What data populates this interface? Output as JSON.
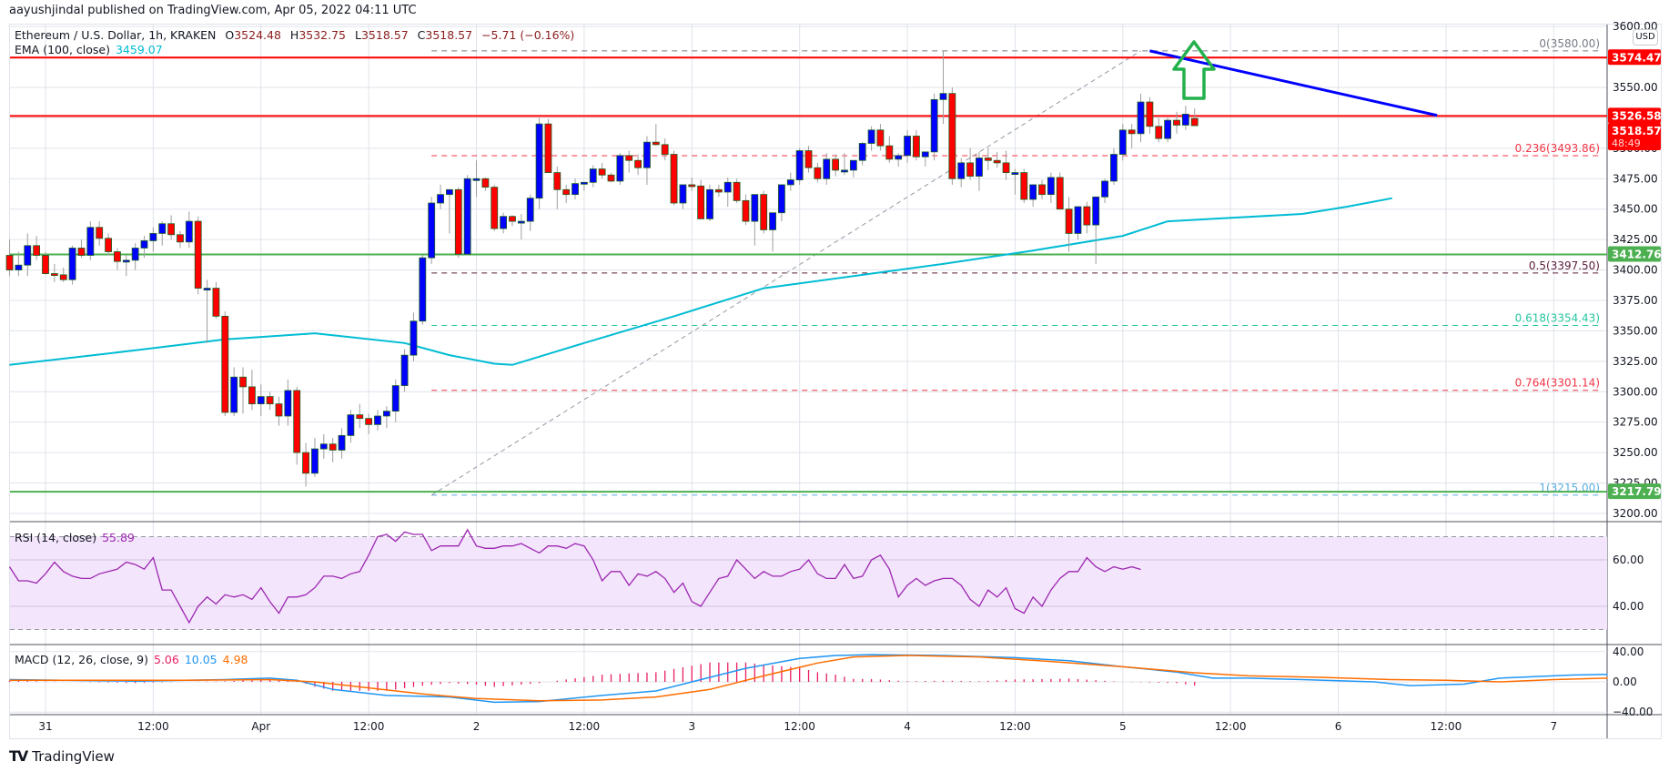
{
  "header": {
    "published": "aayushjindal published on TradingView.com, Apr 05, 2022 04:11 UTC"
  },
  "legend": {
    "symbol": "Ethereum / U.S. Dollar, 1h, KRAKEN",
    "o_label": "O",
    "o": "3524.48",
    "h_label": "H",
    "h": "3532.75",
    "l_label": "L",
    "l": "3518.57",
    "c_label": "C",
    "c": "3518.57",
    "change": "−5.71 (−0.16%)",
    "ema_label": "EMA (100, close)",
    "ema_value": "3459.07",
    "rsi_label": "RSI (14, close)",
    "rsi_value": "55.89",
    "macd_label": "MACD (12, 26, close, 9)",
    "macd_hist": "5.06",
    "macd_line": "10.05",
    "macd_signal": "4.98"
  },
  "currency": "USD",
  "footer": {
    "brand": "TradingView",
    "brand_mark": "TV"
  },
  "colors": {
    "up": "#0000ff",
    "down": "#ff0000",
    "ema": "#00bcd4",
    "rsi": "#9c27b0",
    "rsi_band": "#f3e5fc",
    "macd_line": "#2196f3",
    "macd_signal": "#ff6d00",
    "macd_hist": "#e91e63",
    "resistance": "#ff0000",
    "support": "#4caf50",
    "trendline": "#0000ff",
    "arrow": "#22b14c",
    "grid": "#e0e3eb"
  },
  "chart_data": {
    "type": "candlestick",
    "title": "Ethereum / U.S. Dollar, 1h, KRAKEN",
    "xlabel": "",
    "ylabel": "USD",
    "ylim": [
      3190,
      3610
    ],
    "x_ticks": [
      "31",
      "12:00",
      "Apr",
      "12:00",
      "2",
      "12:00",
      "3",
      "12:00",
      "4",
      "12:00",
      "5",
      "12:00",
      "6",
      "12:00",
      "7"
    ],
    "y_ticks": [
      "3600.00",
      "3575.00",
      "3550.00",
      "3525.00",
      "3500.00",
      "3475.00",
      "3450.00",
      "3425.00",
      "3400.00",
      "3375.00",
      "3350.00",
      "3325.00",
      "3300.00",
      "3275.00",
      "3250.00",
      "3225.00",
      "3200.00"
    ],
    "price_labels": [
      {
        "value": "3574.47",
        "color": "#ff0000"
      },
      {
        "value": "3526.58",
        "color": "#ff0000"
      },
      {
        "value": "3518.57",
        "sub": "48:49",
        "color": "#ff0000"
      },
      {
        "value": "3412.76",
        "color": "#4caf50"
      },
      {
        "value": "3217.79",
        "color": "#4caf50"
      }
    ],
    "horizontal_lines": [
      {
        "name": "resistance-1",
        "price": 3574.47,
        "color": "#ff0000"
      },
      {
        "name": "resistance-2",
        "price": 3526.58,
        "color": "#ff0000"
      },
      {
        "name": "support-1",
        "price": 3412.76,
        "color": "#4caf50"
      },
      {
        "name": "support-2",
        "price": 3217.79,
        "color": "#4caf50"
      }
    ],
    "fibonacci": [
      {
        "level": "0",
        "price": 3580.0,
        "label": "0(3580.00)",
        "color": "#787b86"
      },
      {
        "level": "0.236",
        "price": 3493.86,
        "label": "0.236(3493.86)",
        "color": "#f23645"
      },
      {
        "level": "0.5",
        "price": 3397.5,
        "label": "0.5(3397.50)",
        "color": "#5b1c3a"
      },
      {
        "level": "0.618",
        "price": 3354.43,
        "label": "0.618(3354.43)",
        "color": "#26c6a0"
      },
      {
        "level": "0.764",
        "price": 3301.14,
        "label": "0.764(3301.14)",
        "color": "#f23645"
      },
      {
        "level": "1",
        "price": 3215.0,
        "label": "1(3215.00)",
        "color": "#5aaee0"
      }
    ],
    "trendline": {
      "from": {
        "hour": 123,
        "price": 3580
      },
      "to": {
        "hour": 155,
        "price": 3527
      }
    },
    "fib_trend": {
      "from": {
        "hour": 43,
        "price": 3215
      },
      "to": {
        "hour": 122,
        "price": 3580
      }
    },
    "start_hour_offset": -4,
    "candles": [
      [
        3412,
        3425,
        3395,
        3400
      ],
      [
        3400,
        3415,
        3395,
        3404
      ],
      [
        3404,
        3430,
        3395,
        3420
      ],
      [
        3420,
        3428,
        3408,
        3412
      ],
      [
        3412,
        3415,
        3396,
        3397
      ],
      [
        3397,
        3405,
        3390,
        3396
      ],
      [
        3396,
        3402,
        3390,
        3392
      ],
      [
        3392,
        3420,
        3388,
        3418
      ],
      [
        3418,
        3425,
        3410,
        3412
      ],
      [
        3412,
        3440,
        3408,
        3435
      ],
      [
        3435,
        3440,
        3420,
        3426
      ],
      [
        3426,
        3430,
        3412,
        3415
      ],
      [
        3415,
        3418,
        3400,
        3407
      ],
      [
        3407,
        3412,
        3395,
        3408
      ],
      [
        3408,
        3422,
        3400,
        3418
      ],
      [
        3418,
        3428,
        3410,
        3424
      ],
      [
        3424,
        3435,
        3415,
        3430
      ],
      [
        3430,
        3440,
        3420,
        3438
      ],
      [
        3438,
        3445,
        3425,
        3429
      ],
      [
        3429,
        3432,
        3418,
        3423
      ],
      [
        3423,
        3448,
        3418,
        3440
      ],
      [
        3440,
        3444,
        3380,
        3385
      ],
      [
        3385,
        3392,
        3340,
        3385
      ],
      [
        3385,
        3390,
        3360,
        3362
      ],
      [
        3362,
        3366,
        3280,
        3283
      ],
      [
        3283,
        3320,
        3280,
        3312
      ],
      [
        3312,
        3320,
        3282,
        3304
      ],
      [
        3304,
        3318,
        3285,
        3290
      ],
      [
        3290,
        3306,
        3280,
        3296
      ],
      [
        3296,
        3300,
        3285,
        3290
      ],
      [
        3290,
        3296,
        3272,
        3280
      ],
      [
        3280,
        3310,
        3272,
        3301
      ],
      [
        3301,
        3304,
        3240,
        3250
      ],
      [
        3250,
        3258,
        3222,
        3233
      ],
      [
        3233,
        3262,
        3230,
        3253
      ],
      [
        3253,
        3265,
        3245,
        3257
      ],
      [
        3257,
        3262,
        3242,
        3252
      ],
      [
        3252,
        3270,
        3245,
        3264
      ],
      [
        3264,
        3285,
        3258,
        3281
      ],
      [
        3281,
        3290,
        3270,
        3278
      ],
      [
        3278,
        3282,
        3265,
        3273
      ],
      [
        3273,
        3285,
        3268,
        3280
      ],
      [
        3280,
        3288,
        3270,
        3284
      ],
      [
        3284,
        3310,
        3275,
        3305
      ],
      [
        3305,
        3335,
        3300,
        3330
      ],
      [
        3330,
        3365,
        3325,
        3358
      ],
      [
        3358,
        3412,
        3355,
        3410
      ],
      [
        3410,
        3460,
        3405,
        3455
      ],
      [
        3455,
        3470,
        3450,
        3462
      ],
      [
        3462,
        3466,
        3430,
        3466
      ],
      [
        3466,
        3468,
        3410,
        3413
      ],
      [
        3413,
        3478,
        3412,
        3475
      ],
      [
        3475,
        3490,
        3460,
        3475
      ],
      [
        3475,
        3476,
        3465,
        3468
      ],
      [
        3468,
        3470,
        3432,
        3434
      ],
      [
        3434,
        3447,
        3430,
        3444
      ],
      [
        3444,
        3445,
        3436,
        3440
      ],
      [
        3440,
        3446,
        3425,
        3440
      ],
      [
        3440,
        3462,
        3432,
        3459
      ],
      [
        3459,
        3525,
        3450,
        3520
      ],
      [
        3520,
        3524,
        3480,
        3480
      ],
      [
        3480,
        3485,
        3450,
        3466
      ],
      [
        3466,
        3470,
        3455,
        3462
      ],
      [
        3462,
        3475,
        3458,
        3471
      ],
      [
        3471,
        3472,
        3465,
        3472
      ],
      [
        3472,
        3486,
        3468,
        3483
      ],
      [
        3483,
        3488,
        3475,
        3478
      ],
      [
        3478,
        3480,
        3472,
        3473
      ],
      [
        3473,
        3496,
        3470,
        3494
      ],
      [
        3494,
        3498,
        3480,
        3490
      ],
      [
        3490,
        3495,
        3478,
        3484
      ],
      [
        3484,
        3510,
        3470,
        3505
      ],
      [
        3505,
        3520,
        3502,
        3503
      ],
      [
        3503,
        3508,
        3490,
        3495
      ],
      [
        3495,
        3498,
        3453,
        3455
      ],
      [
        3455,
        3470,
        3450,
        3470
      ],
      [
        3470,
        3476,
        3465,
        3469
      ],
      [
        3469,
        3474,
        3442,
        3442
      ],
      [
        3442,
        3470,
        3440,
        3466
      ],
      [
        3466,
        3470,
        3460,
        3464
      ],
      [
        3464,
        3476,
        3452,
        3472
      ],
      [
        3472,
        3475,
        3455,
        3457
      ],
      [
        3457,
        3462,
        3437,
        3440
      ],
      [
        3440,
        3445,
        3420,
        3462
      ],
      [
        3462,
        3465,
        3430,
        3433
      ],
      [
        3433,
        3440,
        3415,
        3447
      ],
      [
        3447,
        3470,
        3440,
        3470
      ],
      [
        3470,
        3480,
        3465,
        3474
      ],
      [
        3474,
        3500,
        3470,
        3498
      ],
      [
        3498,
        3502,
        3480,
        3484
      ],
      [
        3484,
        3488,
        3472,
        3475
      ],
      [
        3475,
        3496,
        3470,
        3491
      ],
      [
        3491,
        3495,
        3477,
        3482
      ],
      [
        3482,
        3496,
        3478,
        3482
      ],
      [
        3482,
        3490,
        3476,
        3490
      ],
      [
        3490,
        3505,
        3486,
        3504
      ],
      [
        3504,
        3518,
        3498,
        3515
      ],
      [
        3515,
        3520,
        3498,
        3502
      ],
      [
        3502,
        3510,
        3488,
        3491
      ],
      [
        3491,
        3496,
        3485,
        3494
      ],
      [
        3494,
        3515,
        3488,
        3510
      ],
      [
        3510,
        3515,
        3490,
        3493
      ],
      [
        3493,
        3497,
        3485,
        3497
      ],
      [
        3497,
        3545,
        3490,
        3540
      ],
      [
        3540,
        3580,
        3520,
        3545
      ],
      [
        3545,
        3550,
        3470,
        3475
      ],
      [
        3475,
        3492,
        3468,
        3488
      ],
      [
        3488,
        3500,
        3474,
        3477
      ],
      [
        3477,
        3497,
        3465,
        3492
      ],
      [
        3492,
        3500,
        3482,
        3490
      ],
      [
        3490,
        3497,
        3484,
        3488
      ],
      [
        3488,
        3498,
        3474,
        3480
      ],
      [
        3480,
        3483,
        3462,
        3480
      ],
      [
        3480,
        3483,
        3455,
        3458
      ],
      [
        3458,
        3470,
        3452,
        3470
      ],
      [
        3470,
        3474,
        3458,
        3462
      ],
      [
        3462,
        3480,
        3455,
        3476
      ],
      [
        3476,
        3480,
        3450,
        3450
      ],
      [
        3450,
        3460,
        3415,
        3430
      ],
      [
        3430,
        3450,
        3425,
        3452
      ],
      [
        3452,
        3456,
        3430,
        3437
      ],
      [
        3437,
        3460,
        3405,
        3460
      ],
      [
        3460,
        3475,
        3455,
        3473
      ],
      [
        3473,
        3500,
        3470,
        3495
      ],
      [
        3495,
        3520,
        3490,
        3515
      ],
      [
        3515,
        3520,
        3500,
        3512
      ],
      [
        3512,
        3545,
        3505,
        3538
      ],
      [
        3538,
        3542,
        3512,
        3518
      ],
      [
        3518,
        3525,
        3505,
        3508
      ],
      [
        3508,
        3525,
        3505,
        3523
      ],
      [
        3523,
        3530,
        3512,
        3519
      ],
      [
        3519,
        3535,
        3515,
        3528
      ],
      [
        3524.48,
        3532.75,
        3518.57,
        3518.57
      ]
    ],
    "ema100": [
      [
        -4,
        3322
      ],
      [
        10,
        3334
      ],
      [
        20,
        3343
      ],
      [
        30,
        3348
      ],
      [
        40,
        3340
      ],
      [
        45,
        3330
      ],
      [
        50,
        3323
      ],
      [
        52,
        3322
      ],
      [
        60,
        3340
      ],
      [
        70,
        3362
      ],
      [
        80,
        3385
      ],
      [
        90,
        3395
      ],
      [
        100,
        3405
      ],
      [
        110,
        3416
      ],
      [
        120,
        3428
      ],
      [
        125,
        3440
      ],
      [
        130,
        3442
      ],
      [
        140,
        3446
      ],
      [
        145,
        3452
      ],
      [
        150,
        3459
      ]
    ],
    "rsi": {
      "ylim": [
        20,
        80
      ],
      "band": [
        30,
        70
      ],
      "ticks": [
        "60.00",
        "40.00"
      ],
      "values": [
        57,
        51,
        51,
        50,
        54,
        59,
        55,
        53,
        52,
        52,
        54,
        55,
        56,
        59,
        58,
        56,
        61,
        47,
        47,
        40,
        33,
        40,
        44,
        41,
        45,
        44,
        45,
        43,
        48,
        42,
        37,
        44,
        44,
        45,
        48,
        53,
        53,
        52,
        54,
        55,
        62,
        70,
        71,
        68,
        72,
        71,
        71,
        64,
        66,
        66,
        66,
        73,
        66,
        65,
        65,
        66,
        66,
        67,
        65,
        63,
        66,
        66,
        65,
        67,
        66,
        60,
        51,
        55,
        55,
        49,
        54,
        53,
        55,
        52,
        46,
        50,
        42,
        40,
        46,
        52,
        53,
        60,
        56,
        52,
        55,
        53,
        53,
        55,
        56,
        60,
        54,
        52,
        52,
        58,
        52,
        53,
        60,
        62,
        56,
        44,
        49,
        52,
        49,
        51,
        52,
        52,
        49,
        43,
        40,
        47,
        44,
        48,
        39,
        37,
        44,
        40,
        47,
        52,
        55,
        55,
        61,
        57,
        55,
        57,
        56,
        57,
        55.89
      ]
    },
    "macd": {
      "ylim": [
        -50,
        50
      ],
      "ticks": [
        "40.00",
        "0.00",
        "−40.00"
      ],
      "line": [
        [
          -4,
          3
        ],
        [
          10,
          1
        ],
        [
          20,
          3
        ],
        [
          25,
          5
        ],
        [
          28,
          2
        ],
        [
          32,
          -10
        ],
        [
          38,
          -18
        ],
        [
          45,
          -20
        ],
        [
          50,
          -27
        ],
        [
          55,
          -26
        ],
        [
          62,
          -18
        ],
        [
          68,
          -12
        ],
        [
          72,
          0
        ],
        [
          78,
          18
        ],
        [
          84,
          31
        ],
        [
          88,
          35
        ],
        [
          92,
          36
        ],
        [
          100,
          35
        ],
        [
          108,
          32
        ],
        [
          114,
          28
        ],
        [
          120,
          20
        ],
        [
          126,
          13
        ],
        [
          130,
          5
        ],
        [
          134,
          5
        ],
        [
          140,
          3
        ],
        [
          148,
          0
        ],
        [
          152,
          -5
        ],
        [
          158,
          -3
        ],
        [
          162,
          5
        ],
        [
          170,
          9
        ],
        [
          174,
          10.05
        ]
      ],
      "signal": [
        [
          -4,
          2
        ],
        [
          15,
          2
        ],
        [
          25,
          3
        ],
        [
          30,
          0
        ],
        [
          36,
          -8
        ],
        [
          42,
          -16
        ],
        [
          48,
          -22
        ],
        [
          55,
          -25
        ],
        [
          62,
          -24
        ],
        [
          68,
          -20
        ],
        [
          74,
          -10
        ],
        [
          80,
          8
        ],
        [
          86,
          25
        ],
        [
          90,
          33
        ],
        [
          96,
          35
        ],
        [
          104,
          33
        ],
        [
          112,
          27
        ],
        [
          120,
          20
        ],
        [
          128,
          12
        ],
        [
          134,
          8
        ],
        [
          142,
          6
        ],
        [
          150,
          3
        ],
        [
          156,
          2
        ],
        [
          162,
          0
        ],
        [
          168,
          3
        ],
        [
          174,
          4.98
        ]
      ],
      "hist_scale": 1.0
    }
  }
}
